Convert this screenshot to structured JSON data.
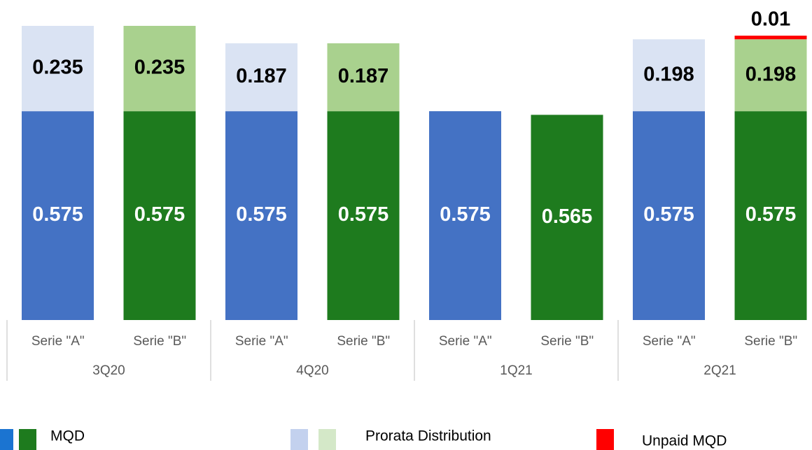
{
  "chart_data": {
    "type": "stacked-bar",
    "categories": [
      "Serie \"A\"",
      "Serie \"B\"",
      "Serie \"A\"",
      "Serie \"B\"",
      "Serie \"A\"",
      "Serie \"B\"",
      "Serie \"A\"",
      "Serie \"B\""
    ],
    "groups": [
      "3Q20",
      "4Q20",
      "1Q21",
      "2Q21"
    ],
    "series": [
      {
        "name": "MQD",
        "values": [
          0.575,
          0.575,
          0.575,
          0.575,
          0.575,
          0.565,
          0.575,
          0.575
        ],
        "colors": [
          "#4472c4",
          "#1e7b1e",
          "#4472c4",
          "#1e7b1e",
          "#4472c4",
          "#1e7b1e",
          "#4472c4",
          "#1e7b1e"
        ],
        "legend_colors": [
          "#1b74d1",
          "#1e7b1e"
        ],
        "label_color": "#ffffff"
      },
      {
        "name": "Prorata Distribution",
        "values": [
          0.235,
          0.235,
          0.187,
          0.187,
          null,
          null,
          0.198,
          0.198
        ],
        "colors": [
          "#dae3f3",
          "#a9d18e",
          "#dae3f3",
          "#a9d18e",
          "#dae3f3",
          "#a9d18e",
          "#dae3f3",
          "#a9d18e"
        ],
        "legend_colors": [
          "#c3d1ee",
          "#d4e8c8"
        ],
        "label_color": "#000000"
      },
      {
        "name": "Unpaid MQD",
        "values": [
          null,
          null,
          null,
          null,
          null,
          null,
          null,
          0.01
        ],
        "colors": [
          "#ff0000",
          "#ff0000",
          "#ff0000",
          "#ff0000",
          "#ff0000",
          "#ff0000",
          "#ff0000",
          "#ff0000"
        ],
        "legend_colors": [
          "#ff0000"
        ],
        "label_color": "#000000",
        "label_position": "above"
      }
    ],
    "ylim": [
      0,
      0.81
    ]
  }
}
